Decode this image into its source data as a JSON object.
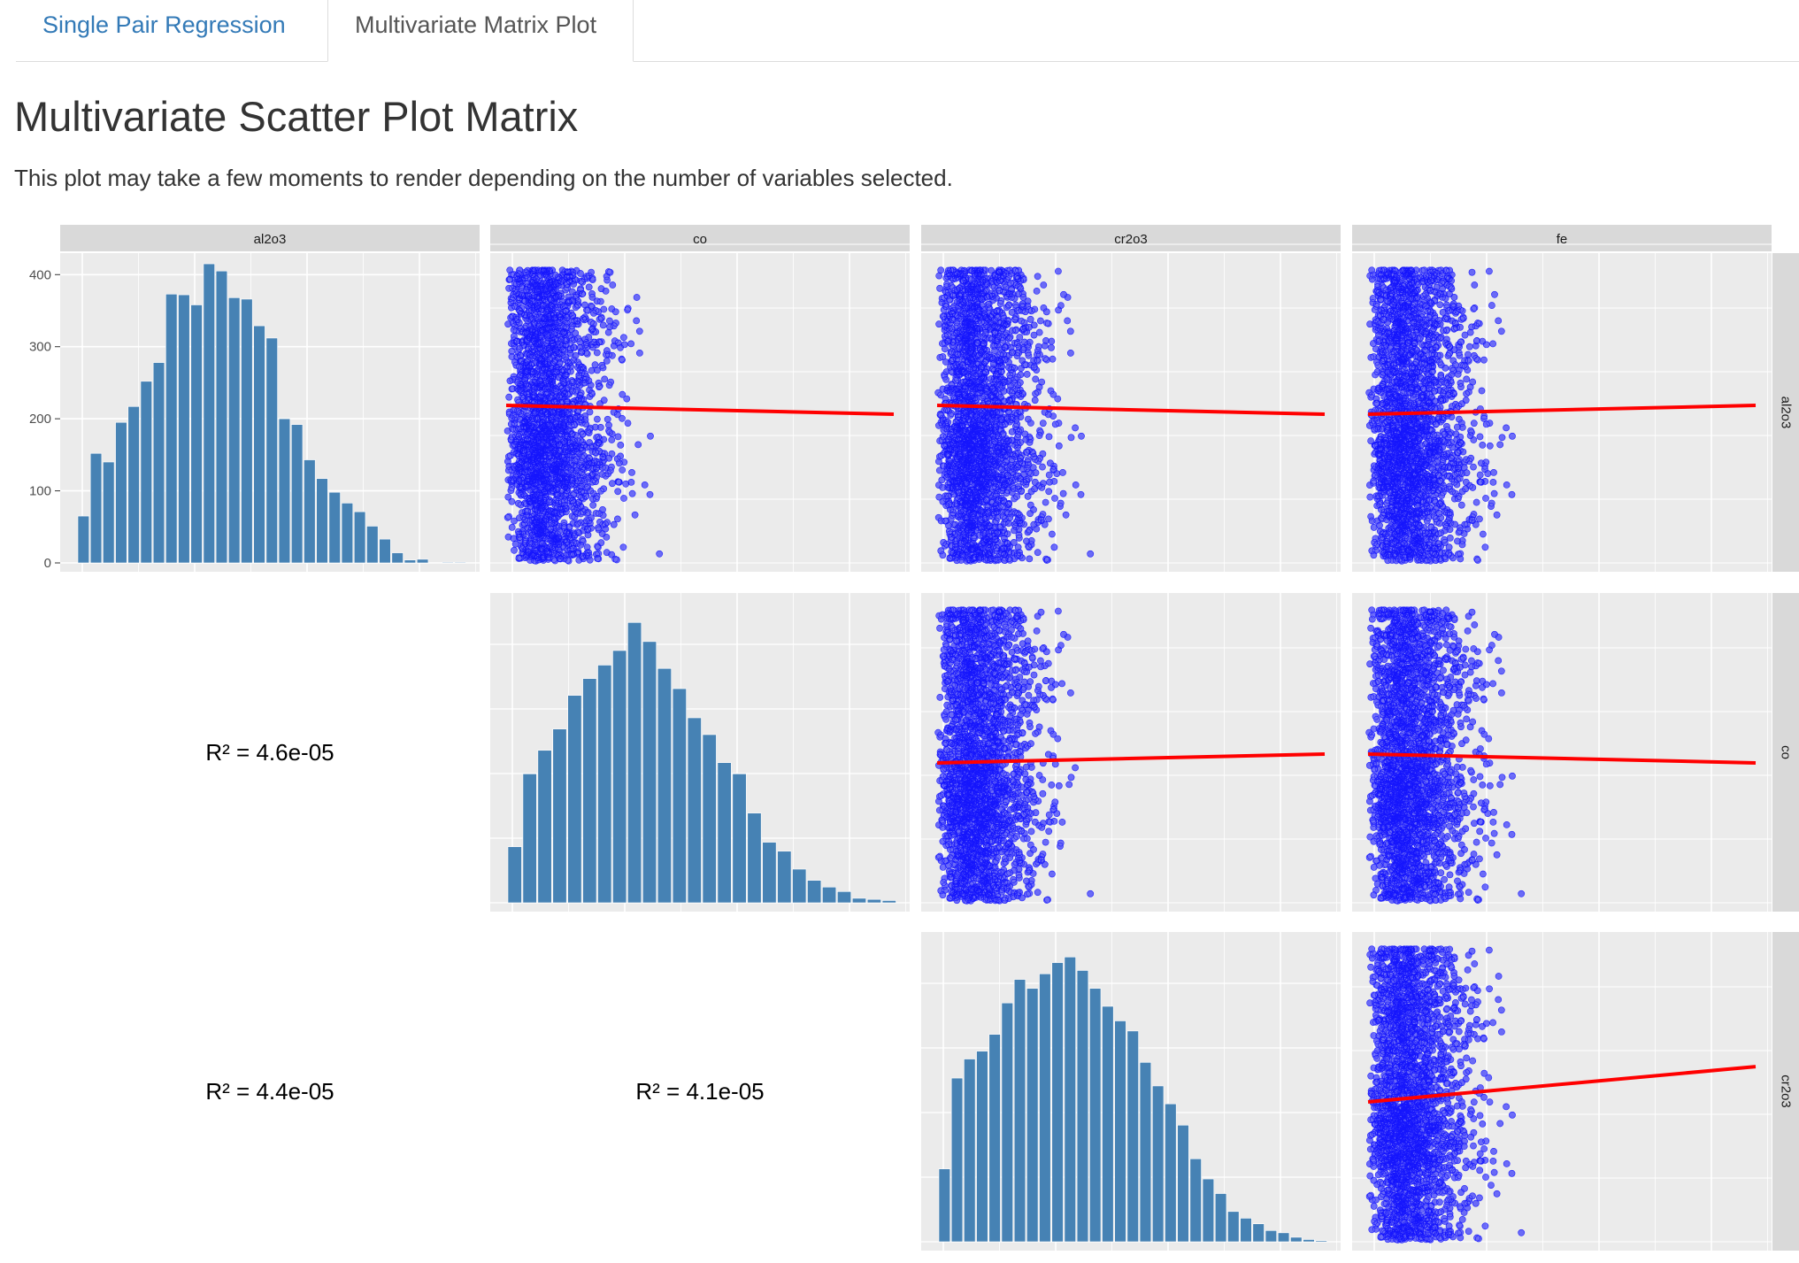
{
  "tabs": [
    {
      "label": "Single Pair Regression",
      "active": false
    },
    {
      "label": "Multivariate Matrix Plot",
      "active": true
    }
  ],
  "page": {
    "title": "Multivariate Scatter Plot Matrix",
    "subtitle": "This plot may take a few moments to render depending on the number of variables selected."
  },
  "colors": {
    "histogram_fill": "#4682b4",
    "point_color": "#0000ff",
    "fit_line": "#ff0000",
    "panel_bg": "#ebebeb",
    "strip_bg": "#d9d9d9",
    "tab_link": "#337ab7"
  },
  "chart_data": {
    "type": "scatter",
    "title": "",
    "variables_columns": [
      "al2o3",
      "co",
      "cr2o3",
      "fe"
    ],
    "variables_rows": [
      "al2o3",
      "co",
      "cr2o3"
    ],
    "histogram_y_ticks": [
      0,
      100,
      200,
      300,
      400
    ],
    "histograms": [
      {
        "variable": "al2o3",
        "ylim": [
          0,
          420
        ],
        "counts": [
          65,
          152,
          140,
          195,
          217,
          252,
          278,
          373,
          372,
          358,
          415,
          405,
          368,
          366,
          329,
          312,
          200,
          192,
          143,
          117,
          98,
          83,
          71,
          51,
          33,
          14,
          4,
          5,
          0,
          1,
          1
        ]
      },
      {
        "variable": "co",
        "ylim": [
          0,
          270
        ],
        "counts": [
          50,
          115,
          136,
          155,
          185,
          200,
          212,
          225,
          250,
          233,
          209,
          191,
          165,
          150,
          125,
          115,
          80,
          54,
          46,
          30,
          20,
          14,
          10,
          4,
          3,
          2
        ]
      },
      {
        "variable": "cr2o3",
        "ylim": [
          0,
          270
        ],
        "counts": [
          65,
          146,
          163,
          170,
          185,
          213,
          234,
          226,
          239,
          249,
          254,
          242,
          226,
          210,
          197,
          188,
          160,
          139,
          123,
          104,
          74,
          56,
          43,
          27,
          21,
          16,
          10,
          8,
          4,
          2,
          1
        ]
      }
    ],
    "scatter_panels": [
      {
        "x": "co",
        "y": "al2o3",
        "n_points": 2600,
        "fit_line": {
          "start": 0.31,
          "end": 0.3
        }
      },
      {
        "x": "cr2o3",
        "y": "al2o3",
        "n_points": 2600,
        "fit_line": {
          "start": 0.31,
          "end": 0.3
        }
      },
      {
        "x": "fe",
        "y": "al2o3",
        "n_points": 2600,
        "fit_line": {
          "start": 0.3,
          "end": 0.31
        }
      },
      {
        "x": "cr2o3",
        "y": "co",
        "n_points": 2600,
        "fit_line": {
          "start": 0.29,
          "end": 0.3
        }
      },
      {
        "x": "fe",
        "y": "co",
        "n_points": 2600,
        "fit_line": {
          "start": 0.3,
          "end": 0.29
        }
      },
      {
        "x": "fe",
        "y": "cr2o3",
        "n_points": 2600,
        "fit_line": {
          "start": 0.29,
          "end": 0.33
        }
      }
    ],
    "r_squared": [
      {
        "row": "co",
        "col": "al2o3",
        "label": "R² = 4.6e-05"
      },
      {
        "row": "cr2o3",
        "col": "al2o3",
        "label": "R² = 4.4e-05"
      },
      {
        "row": "cr2o3",
        "col": "co",
        "label": "R² = 4.1e-05"
      }
    ]
  }
}
